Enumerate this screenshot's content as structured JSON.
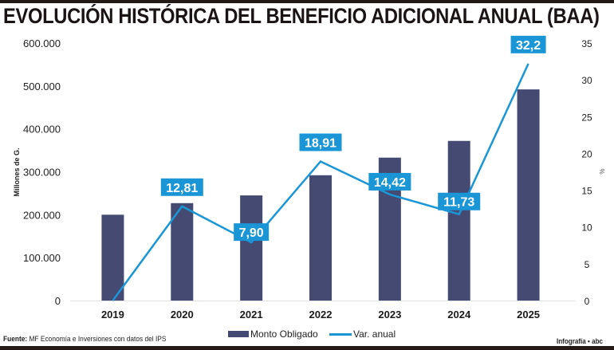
{
  "header": {
    "title": "EVOLUCIÓN HISTÓRICA DEL BENEFICIO ADICIONAL ANUAL (BAA)"
  },
  "footer": {
    "source_label": "Fuente:",
    "source_text": "MF Economía e Inversiones con datos del IPS",
    "credit_label": "Infografía •",
    "credit_brand": "abc"
  },
  "colors": {
    "bar": "#454a72",
    "line": "#1a96d6",
    "label_bg": "#1a96d6",
    "label_text": "#ffffff",
    "axis_text": "#222222",
    "baseline": "#e3e3e3"
  },
  "chart_data": {
    "type": "bar",
    "title": "EVOLUCIÓN HISTÓRICA DEL BENEFICIO ADICIONAL ANUAL (BAA)",
    "categories": [
      "2019",
      "2020",
      "2021",
      "2022",
      "2023",
      "2024",
      "2025"
    ],
    "series": [
      {
        "name": "Monto Obligado",
        "type": "bar",
        "axis": "left",
        "values": [
          200000,
          227000,
          245000,
          292000,
          333000,
          372000,
          492000
        ]
      },
      {
        "name": "Var. anual",
        "type": "line",
        "axis": "right",
        "values": [
          0,
          12.81,
          7.9,
          18.91,
          14.42,
          11.73,
          32.2
        ],
        "labels": [
          null,
          "12,81",
          "7,90",
          "18,91",
          "14,42",
          "11,73",
          "32,2"
        ]
      }
    ],
    "ylabel": "Millones de G.",
    "ylabel_right": "%",
    "xlabel": "",
    "ylim": [
      0,
      600000
    ],
    "ylim_right": [
      0,
      35
    ],
    "yticks": [
      0,
      100000,
      200000,
      300000,
      400000,
      500000,
      600000
    ],
    "ytick_labels": [
      "0",
      "100.000",
      "200.000",
      "300.000",
      "400.000",
      "500.000",
      "600.000"
    ],
    "yticks_right": [
      0,
      5,
      10,
      15,
      20,
      25,
      30,
      35
    ],
    "ytick_labels_right": [
      "0",
      "5",
      "10",
      "15",
      "20",
      "25",
      "30",
      "35"
    ],
    "grid": false,
    "legend": {
      "position": "bottom-center",
      "entries": [
        "Monto Obligado",
        "Var. anual"
      ]
    }
  }
}
